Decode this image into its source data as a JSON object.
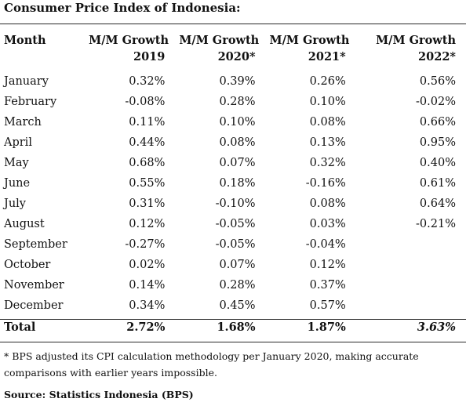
{
  "title": "Consumer Price Index of Indonesia:",
  "table": {
    "headers": {
      "month": "Month",
      "y2019": [
        "M/M Growth",
        "2019"
      ],
      "y2020": [
        "M/M Growth",
        "2020*"
      ],
      "y2021": [
        "M/M Growth",
        "2021*"
      ],
      "y2022": [
        "M/M Growth",
        "2022*"
      ]
    },
    "rows": [
      {
        "month": "January",
        "v2019": "0.32%",
        "v2020": "0.39%",
        "v2021": "0.26%",
        "v2022": "0.56%"
      },
      {
        "month": "February",
        "v2019": "-0.08%",
        "v2020": "0.28%",
        "v2021": "0.10%",
        "v2022": "-0.02%"
      },
      {
        "month": "March",
        "v2019": "0.11%",
        "v2020": "0.10%",
        "v2021": "0.08%",
        "v2022": "0.66%"
      },
      {
        "month": "April",
        "v2019": "0.44%",
        "v2020": "0.08%",
        "v2021": "0.13%",
        "v2022": "0.95%"
      },
      {
        "month": "May",
        "v2019": "0.68%",
        "v2020": "0.07%",
        "v2021": "0.32%",
        "v2022": "0.40%"
      },
      {
        "month": "June",
        "v2019": "0.55%",
        "v2020": "0.18%",
        "v2021": "-0.16%",
        "v2022": "0.61%"
      },
      {
        "month": "July",
        "v2019": "0.31%",
        "v2020": "-0.10%",
        "v2021": "0.08%",
        "v2022": "0.64%"
      },
      {
        "month": "August",
        "v2019": "0.12%",
        "v2020": "-0.05%",
        "v2021": "0.03%",
        "v2022": "-0.21%"
      },
      {
        "month": "September",
        "v2019": "-0.27%",
        "v2020": "-0.05%",
        "v2021": "-0.04%",
        "v2022": ""
      },
      {
        "month": "October",
        "v2019": "0.02%",
        "v2020": "0.07%",
        "v2021": "0.12%",
        "v2022": ""
      },
      {
        "month": "November",
        "v2019": "0.14%",
        "v2020": "0.28%",
        "v2021": "0.37%",
        "v2022": ""
      },
      {
        "month": "December",
        "v2019": "0.34%",
        "v2020": "0.45%",
        "v2021": "0.57%",
        "v2022": ""
      }
    ],
    "total": {
      "label": "Total",
      "v2019": "2.72%",
      "v2020": "1.68%",
      "v2021": "1.87%",
      "v2022": "3.63%"
    }
  },
  "footnote": "* BPS adjusted its CPI calculation methodology per January 2020, making accurate comparisons with earlier years impossible.",
  "source": "Source: Statistics Indonesia (BPS)"
}
